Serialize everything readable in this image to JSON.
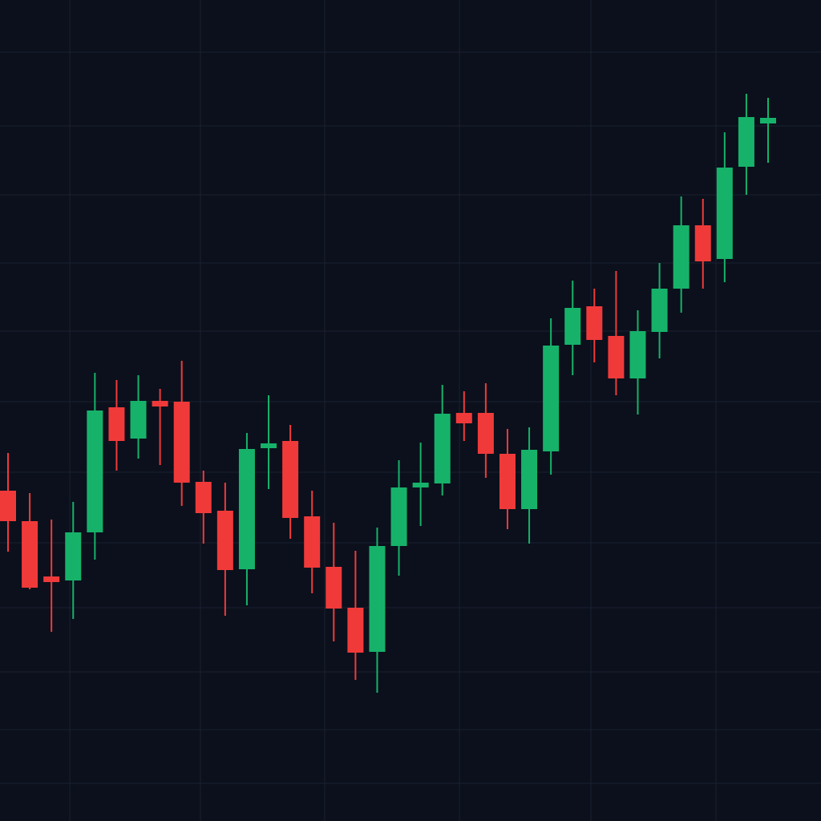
{
  "chart_data": {
    "type": "candlestick",
    "open": [
      412,
      374,
      305,
      300,
      360,
      516,
      477,
      524,
      523,
      423,
      387,
      314,
      465,
      474,
      380,
      317,
      266,
      211,
      343,
      416,
      421,
      509,
      509,
      458,
      389,
      461,
      594,
      642,
      605,
      552,
      610,
      664,
      743,
      701,
      816,
      870
    ],
    "high": [
      459,
      409,
      376,
      398,
      559,
      550,
      556,
      539,
      574,
      437,
      422,
      484,
      531,
      494,
      412,
      372,
      337,
      366,
      450,
      472,
      544,
      536,
      546,
      489,
      491,
      627,
      674,
      664,
      686,
      637,
      696,
      779,
      776,
      859,
      907,
      902
    ],
    "low": [
      336,
      289,
      236,
      252,
      326,
      437,
      452,
      444,
      393,
      346,
      256,
      269,
      414,
      352,
      284,
      224,
      176,
      160,
      306,
      368,
      406,
      474,
      428,
      364,
      346,
      432,
      556,
      572,
      531,
      507,
      577,
      634,
      664,
      672,
      781,
      821
    ],
    "close": [
      374,
      291,
      298,
      360,
      512,
      474,
      524,
      517,
      422,
      384,
      313,
      464,
      471,
      378,
      316,
      265,
      210,
      343,
      416,
      422,
      508,
      496,
      458,
      389,
      463,
      593,
      640,
      600,
      552,
      611,
      664,
      743,
      698,
      815,
      878,
      877
    ],
    "up_color": "#17b26a",
    "down_color": "#f03a3a",
    "ylim": [
      0,
      1024
    ],
    "yticks": [
      959,
      867,
      781,
      696,
      611,
      523,
      435,
      347,
      266,
      186,
      114,
      47
    ],
    "grid": true
  }
}
